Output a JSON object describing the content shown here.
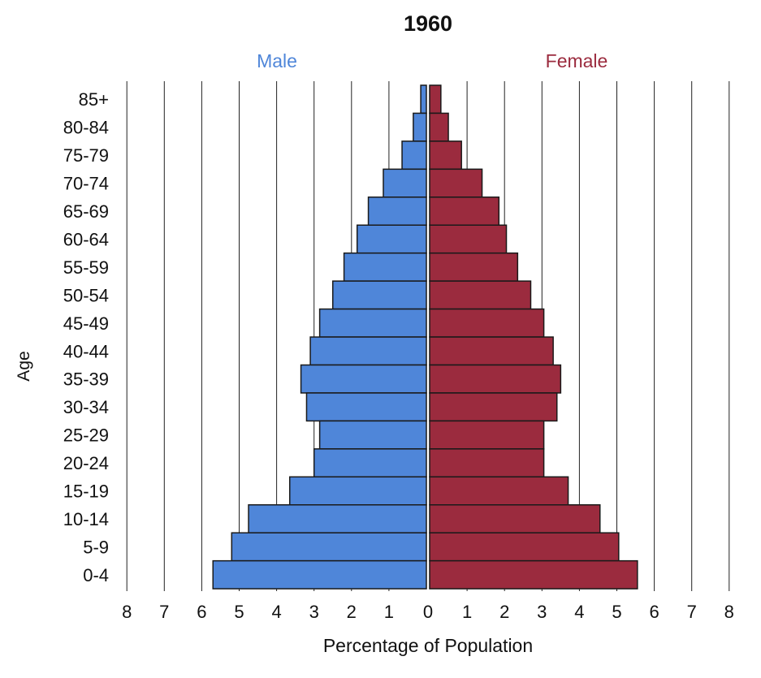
{
  "chart_data": {
    "type": "bar",
    "orientation": "horizontal-population-pyramid",
    "title": "1960",
    "xlabel": "Percentage of Population",
    "ylabel": "Age",
    "xlim": [
      0,
      8
    ],
    "x_ticks": [
      "8",
      "7",
      "6",
      "5",
      "4",
      "3",
      "2",
      "1",
      "0",
      "1",
      "2",
      "3",
      "4",
      "5",
      "6",
      "7",
      "8"
    ],
    "grid": "vertical",
    "categories": [
      "85+",
      "80-84",
      "75-79",
      "70-74",
      "65-69",
      "60-64",
      "55-59",
      "50-54",
      "45-49",
      "40-44",
      "35-39",
      "30-34",
      "25-29",
      "20-24",
      "15-19",
      "10-14",
      "5-9",
      "0-4"
    ],
    "series": [
      {
        "name": "Male",
        "side": "left",
        "color": "#4f86d9",
        "values": [
          0.15,
          0.35,
          0.65,
          1.15,
          1.55,
          1.85,
          2.2,
          2.5,
          2.85,
          3.1,
          3.35,
          3.2,
          2.85,
          3.0,
          3.65,
          4.75,
          5.2,
          5.7
        ]
      },
      {
        "name": "Female",
        "side": "right",
        "color": "#9b2b3e",
        "values": [
          0.3,
          0.5,
          0.85,
          1.4,
          1.85,
          2.05,
          2.35,
          2.7,
          3.05,
          3.3,
          3.5,
          3.4,
          3.05,
          3.05,
          3.7,
          4.55,
          5.05,
          5.55
        ]
      }
    ]
  }
}
